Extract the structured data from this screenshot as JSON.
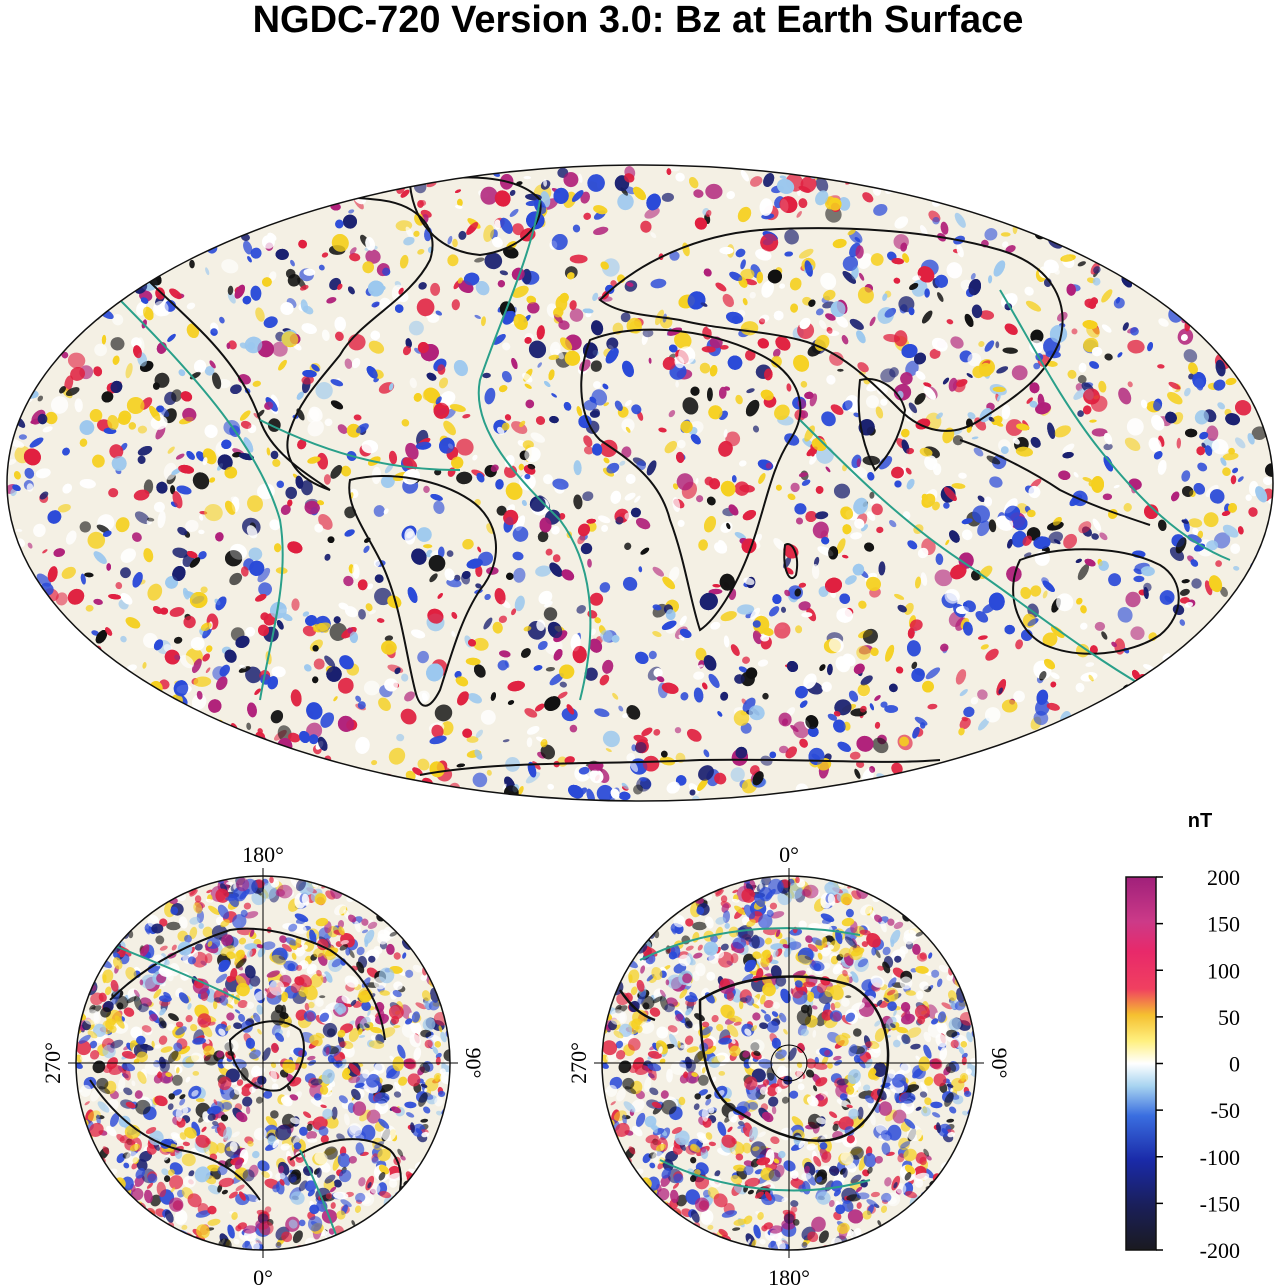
{
  "title": "NGDC-720 Version 3.0: Bz at Earth Surface",
  "colorbar": {
    "unit": "nT",
    "ticks": [
      "200",
      "150",
      "100",
      "50",
      "0",
      "-50",
      "-100",
      "-150",
      "-200"
    ],
    "colors": [
      "#a0207a",
      "#cc3a88",
      "#e8296a",
      "#f0506a",
      "#f5c030",
      "#fff080",
      "#ffffff",
      "#a8d4f0",
      "#3a6ee0",
      "#1a2aa8",
      "#1a1f5a",
      "#1a1a20"
    ]
  },
  "north_polar": {
    "label_top": "180°",
    "label_bottom": "0°",
    "label_left": "270°",
    "label_right": "90°"
  },
  "south_polar": {
    "label_top": "0°",
    "label_bottom": "180°",
    "label_left": "270°",
    "label_right": "90°"
  },
  "palette": {
    "magenta": "#b0207a",
    "red": "#e02040",
    "yellow": "#f5d020",
    "white": "#ffffff",
    "lightblue": "#9cc8ee",
    "blue": "#2a4ad8",
    "navy": "#1a2070",
    "black": "#111111",
    "plate_boundary": "#2aa08a"
  }
}
